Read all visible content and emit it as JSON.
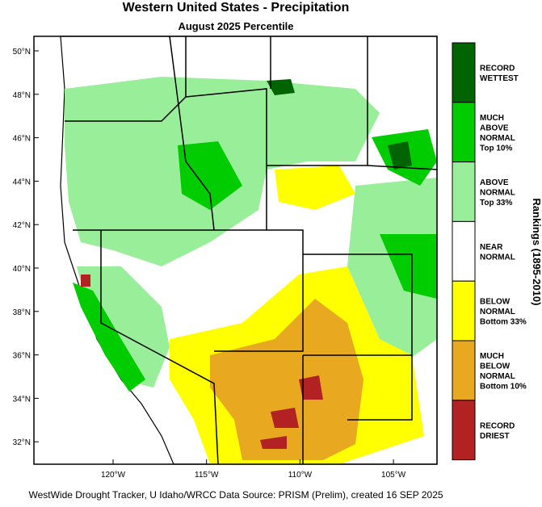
{
  "header": {
    "title": "Western United States - Precipitation",
    "subtitle": "August 2025 Percentile"
  },
  "map": {
    "lat_labels": [
      "50°N",
      "48°N",
      "46°N",
      "44°N",
      "42°N",
      "40°N",
      "38°N",
      "36°N",
      "34°N",
      "32°N"
    ],
    "lon_labels": [
      "120°W",
      "115°W",
      "110°W",
      "105°W"
    ]
  },
  "legend": {
    "title": "Rankings (1895-2010)",
    "entries": [
      {
        "lines": [
          "RECORD",
          "WETTEST"
        ]
      },
      {
        "lines": [
          "MUCH",
          "ABOVE",
          "NORMAL",
          "Top 10%"
        ]
      },
      {
        "lines": [
          "ABOVE",
          "NORMAL",
          "Top 33%"
        ]
      },
      {
        "lines": [
          "NEAR",
          "NORMAL"
        ]
      },
      {
        "lines": [
          "BELOW",
          "NORMAL",
          "Bottom 33%"
        ]
      },
      {
        "lines": [
          "MUCH",
          "BELOW",
          "NORMAL",
          "Bottom 10%"
        ]
      },
      {
        "lines": [
          "RECORD",
          "DRIEST"
        ]
      }
    ]
  },
  "footer": "WestWide Drought Tracker, U Idaho/WRCC Data Source: PRISM (Prelim), created 16 SEP 2025"
}
